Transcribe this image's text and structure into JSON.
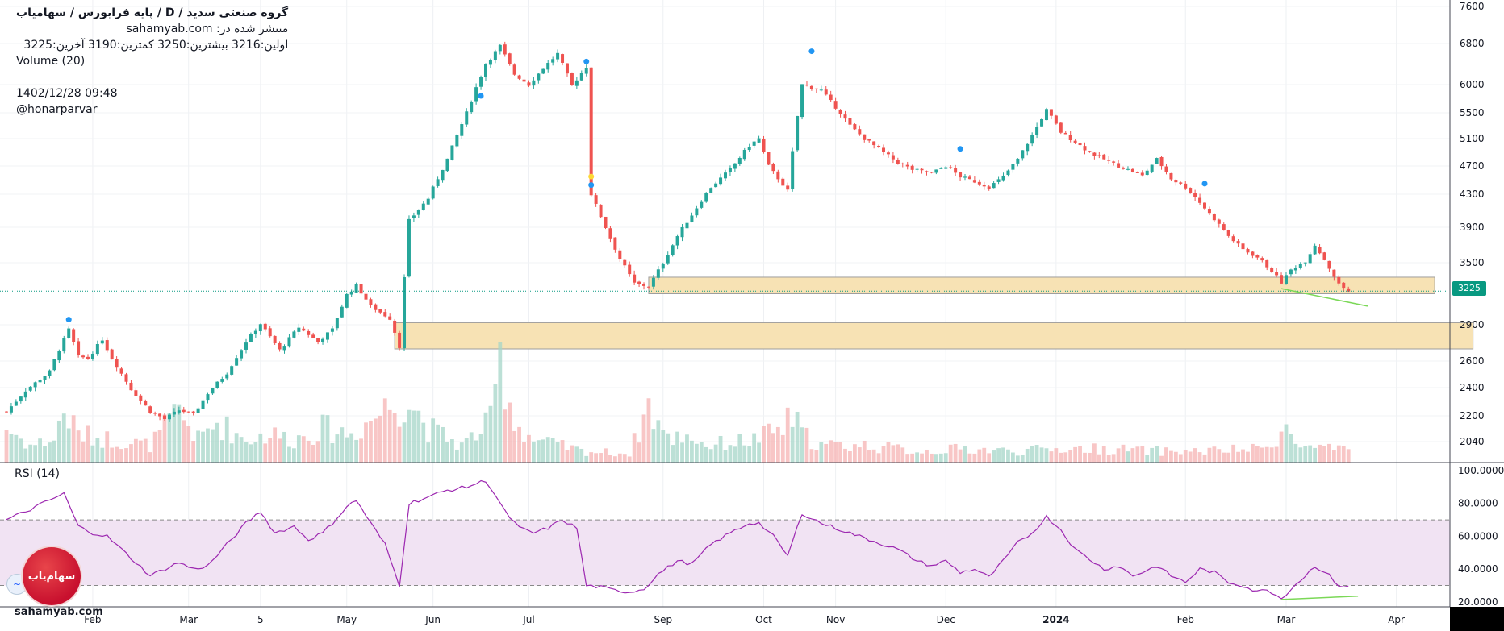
{
  "header": {
    "title": "گروه صنعتی سدید  /  D  /  پایه فرابورس / سهامیاب",
    "published_on": "منتشر شده در: sahamyab.com",
    "ohlc": "اولین:3216  بیشترین:3250  کمترین:3190  آخرین:3225",
    "volume_label": "Volume (20)",
    "timestamp": "1402/12/28 09:48",
    "author": "@honarparvar"
  },
  "rsi_label": "RSI (14)",
  "badge_text": "سهام‌یاب",
  "watermark": "sahamyab.com",
  "last_price": "3225",
  "colors": {
    "up": "#26a69a",
    "down": "#ef5350",
    "zone": "#f7e2b4",
    "rsi": "#9c27b0",
    "rsi_band": "#f1e3f3",
    "trend": "#7bd857"
  },
  "chart_data": [
    {
      "type": "candlestick",
      "title": "گروه صنعتی سدید",
      "y_ticks": [
        "7600",
        "6800",
        "6000",
        "5500",
        "5100",
        "4700",
        "4300",
        "3900",
        "3500",
        "2900",
        "2600",
        "2400",
        "2200",
        "2040"
      ],
      "y_tick_values": [
        7600,
        6800,
        6000,
        5500,
        5100,
        4700,
        4300,
        3900,
        3500,
        2900,
        2600,
        2400,
        2200,
        2040
      ],
      "x_tick_labels": [
        "Feb",
        "Mar",
        "5",
        "May",
        "Jun",
        "Jul",
        "Sep",
        "Oct",
        "Nov",
        "Dec",
        "2024",
        "Feb",
        "Mar",
        "Apr"
      ],
      "x_tick_index": [
        18,
        38,
        53,
        71,
        89,
        109,
        137,
        158,
        173,
        196,
        219,
        246,
        267,
        290
      ],
      "last": 3225,
      "anchor_closes": [
        [
          0,
          2230
        ],
        [
          4,
          2380
        ],
        [
          9,
          2520
        ],
        [
          12,
          2780
        ],
        [
          13,
          2860
        ],
        [
          15,
          2640
        ],
        [
          17,
          2620
        ],
        [
          20,
          2780
        ],
        [
          22,
          2620
        ],
        [
          26,
          2390
        ],
        [
          30,
          2230
        ],
        [
          33,
          2180
        ],
        [
          36,
          2240
        ],
        [
          39,
          2210
        ],
        [
          42,
          2360
        ],
        [
          46,
          2510
        ],
        [
          50,
          2760
        ],
        [
          53,
          2910
        ],
        [
          57,
          2690
        ],
        [
          61,
          2880
        ],
        [
          65,
          2760
        ],
        [
          68,
          2860
        ],
        [
          71,
          3190
        ],
        [
          73,
          3280
        ],
        [
          76,
          3080
        ],
        [
          80,
          2960
        ],
        [
          82,
          2720
        ],
        [
          84,
          3980
        ],
        [
          88,
          4250
        ],
        [
          92,
          4800
        ],
        [
          96,
          5500
        ],
        [
          100,
          6400
        ],
        [
          103,
          6750
        ],
        [
          106,
          6200
        ],
        [
          109,
          6000
        ],
        [
          112,
          6320
        ],
        [
          115,
          6600
        ],
        [
          118,
          5980
        ],
        [
          121,
          6350
        ],
        [
          122,
          4300
        ],
        [
          125,
          3900
        ],
        [
          128,
          3540
        ],
        [
          131,
          3300
        ],
        [
          134,
          3270
        ],
        [
          137,
          3500
        ],
        [
          140,
          3800
        ],
        [
          143,
          4050
        ],
        [
          147,
          4400
        ],
        [
          151,
          4650
        ],
        [
          155,
          5000
        ],
        [
          157,
          5100
        ],
        [
          159,
          4700
        ],
        [
          163,
          4350
        ],
        [
          166,
          6000
        ],
        [
          170,
          5900
        ],
        [
          173,
          5600
        ],
        [
          176,
          5300
        ],
        [
          179,
          5100
        ],
        [
          182,
          4950
        ],
        [
          186,
          4750
        ],
        [
          189,
          4650
        ],
        [
          193,
          4600
        ],
        [
          196,
          4700
        ],
        [
          199,
          4550
        ],
        [
          202,
          4480
        ],
        [
          205,
          4400
        ],
        [
          208,
          4550
        ],
        [
          211,
          4800
        ],
        [
          214,
          5150
        ],
        [
          217,
          5550
        ],
        [
          220,
          5200
        ],
        [
          223,
          5050
        ],
        [
          226,
          4900
        ],
        [
          229,
          4800
        ],
        [
          232,
          4700
        ],
        [
          235,
          4620
        ],
        [
          237,
          4560
        ],
        [
          240,
          4800
        ],
        [
          243,
          4520
        ],
        [
          246,
          4400
        ],
        [
          249,
          4200
        ],
        [
          252,
          4000
        ],
        [
          255,
          3800
        ],
        [
          258,
          3650
        ],
        [
          261,
          3560
        ],
        [
          264,
          3420
        ],
        [
          266,
          3310
        ],
        [
          268,
          3430
        ],
        [
          271,
          3520
        ],
        [
          273,
          3700
        ],
        [
          276,
          3450
        ],
        [
          278,
          3290
        ],
        [
          280,
          3225
        ]
      ],
      "volume_profile": [
        [
          0,
          0.3
        ],
        [
          5,
          0.15
        ],
        [
          10,
          0.2
        ],
        [
          12,
          0.45
        ],
        [
          15,
          0.25
        ],
        [
          22,
          0.2
        ],
        [
          30,
          0.15
        ],
        [
          33,
          0.3
        ],
        [
          36,
          0.45
        ],
        [
          40,
          0.2
        ],
        [
          44,
          0.35
        ],
        [
          50,
          0.2
        ],
        [
          55,
          0.25
        ],
        [
          60,
          0.2
        ],
        [
          66,
          0.3
        ],
        [
          72,
          0.25
        ],
        [
          80,
          0.5
        ],
        [
          84,
          0.55
        ],
        [
          88,
          0.3
        ],
        [
          95,
          0.15
        ],
        [
          101,
          0.35
        ],
        [
          103,
          0.95
        ],
        [
          106,
          0.35
        ],
        [
          110,
          0.2
        ],
        [
          120,
          0.1
        ],
        [
          130,
          0.08
        ],
        [
          134,
          0.5
        ],
        [
          138,
          0.2
        ],
        [
          142,
          0.25
        ],
        [
          146,
          0.15
        ],
        [
          156,
          0.2
        ],
        [
          162,
          0.3
        ],
        [
          164,
          0.4
        ],
        [
          166,
          0.25
        ],
        [
          170,
          0.15
        ],
        [
          180,
          0.15
        ],
        [
          190,
          0.1
        ],
        [
          200,
          0.12
        ],
        [
          210,
          0.1
        ],
        [
          220,
          0.12
        ],
        [
          230,
          0.12
        ],
        [
          240,
          0.1
        ],
        [
          250,
          0.1
        ],
        [
          262,
          0.12
        ],
        [
          267,
          0.3
        ],
        [
          269,
          0.15
        ],
        [
          275,
          0.12
        ],
        [
          280,
          0.1
        ]
      ],
      "zones": [
        {
          "from": 3200,
          "to": 3360,
          "start_index": 134,
          "end_index": 298
        },
        {
          "from": 2700,
          "to": 2920,
          "start_index": 81,
          "end_index": 306
        }
      ],
      "trendline": {
        "from": [
          266,
          3250
        ],
        "to": [
          284,
          3080
        ]
      },
      "dots": [
        {
          "index": 13,
          "price": 2950,
          "color": "#2196f3"
        },
        {
          "index": 99,
          "price": 5800,
          "color": "#2196f3"
        },
        {
          "index": 121,
          "price": 6450,
          "color": "#2196f3"
        },
        {
          "index": 122,
          "price": 4550,
          "color": "#fdd835"
        },
        {
          "index": 122,
          "price": 4430,
          "color": "#2196f3"
        },
        {
          "index": 168,
          "price": 6650,
          "color": "#2196f3"
        },
        {
          "index": 199,
          "price": 4950,
          "color": "#2196f3"
        },
        {
          "index": 250,
          "price": 4450,
          "color": "#2196f3"
        }
      ]
    },
    {
      "type": "line",
      "title": "RSI (14)",
      "y_ticks": [
        "100.0000",
        "80.0000",
        "60.0000",
        "40.0000",
        "20.0000"
      ],
      "y_tick_values": [
        100,
        80,
        60,
        40,
        20
      ],
      "ylim": [
        17,
        100
      ],
      "overbought": 70,
      "oversold": 30,
      "series": [
        [
          0,
          70
        ],
        [
          4,
          75
        ],
        [
          9,
          82
        ],
        [
          12,
          86
        ],
        [
          15,
          66
        ],
        [
          18,
          62
        ],
        [
          21,
          60
        ],
        [
          24,
          52
        ],
        [
          27,
          44
        ],
        [
          30,
          36
        ],
        [
          33,
          40
        ],
        [
          36,
          44
        ],
        [
          39,
          40
        ],
        [
          42,
          42
        ],
        [
          46,
          55
        ],
        [
          50,
          68
        ],
        [
          53,
          75
        ],
        [
          56,
          62
        ],
        [
          60,
          66
        ],
        [
          63,
          58
        ],
        [
          66,
          62
        ],
        [
          68,
          68
        ],
        [
          71,
          78
        ],
        [
          73,
          82
        ],
        [
          76,
          68
        ],
        [
          79,
          55
        ],
        [
          82,
          30
        ],
        [
          84,
          80
        ],
        [
          88,
          84
        ],
        [
          92,
          88
        ],
        [
          96,
          90
        ],
        [
          100,
          94
        ],
        [
          102,
          85
        ],
        [
          104,
          75
        ],
        [
          107,
          65
        ],
        [
          110,
          62
        ],
        [
          113,
          65
        ],
        [
          116,
          70
        ],
        [
          119,
          65
        ],
        [
          121,
          30
        ],
        [
          124,
          29
        ],
        [
          127,
          27
        ],
        [
          130,
          26
        ],
        [
          133,
          28
        ],
        [
          136,
          37
        ],
        [
          140,
          45
        ],
        [
          143,
          43
        ],
        [
          147,
          55
        ],
        [
          151,
          62
        ],
        [
          155,
          68
        ],
        [
          157,
          68
        ],
        [
          160,
          60
        ],
        [
          163,
          48
        ],
        [
          166,
          74
        ],
        [
          170,
          68
        ],
        [
          174,
          64
        ],
        [
          178,
          60
        ],
        [
          182,
          56
        ],
        [
          186,
          52
        ],
        [
          190,
          45
        ],
        [
          193,
          42
        ],
        [
          196,
          45
        ],
        [
          199,
          38
        ],
        [
          202,
          40
        ],
        [
          205,
          35
        ],
        [
          208,
          45
        ],
        [
          211,
          56
        ],
        [
          214,
          62
        ],
        [
          217,
          72
        ],
        [
          220,
          64
        ],
        [
          223,
          52
        ],
        [
          226,
          46
        ],
        [
          229,
          40
        ],
        [
          232,
          42
        ],
        [
          235,
          36
        ],
        [
          237,
          38
        ],
        [
          240,
          42
        ],
        [
          243,
          36
        ],
        [
          246,
          32
        ],
        [
          249,
          40
        ],
        [
          252,
          38
        ],
        [
          255,
          32
        ],
        [
          258,
          30
        ],
        [
          261,
          26
        ],
        [
          263,
          28
        ],
        [
          266,
          22
        ],
        [
          268,
          28
        ],
        [
          271,
          36
        ],
        [
          273,
          42
        ],
        [
          276,
          36
        ],
        [
          278,
          30
        ],
        [
          280,
          29
        ]
      ],
      "trendline": {
        "from": [
          266,
          21.5
        ],
        "to": [
          282,
          23.5
        ]
      }
    }
  ]
}
